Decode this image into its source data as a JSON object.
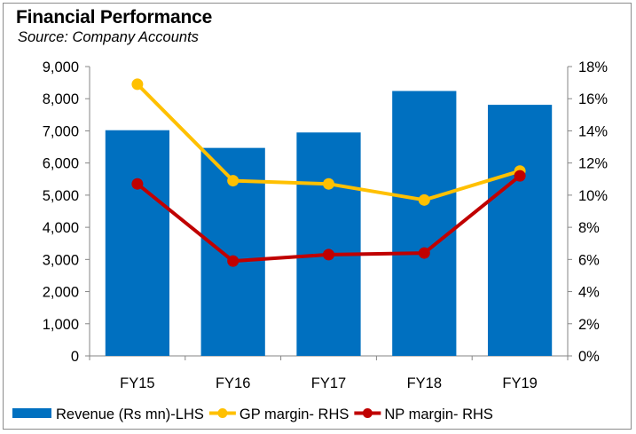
{
  "chart_data": {
    "type": "bar",
    "title": "Financial Performance",
    "subtitle": "Source: Company Accounts",
    "categories": [
      "FY15",
      "FY16",
      "FY17",
      "FY18",
      "FY19"
    ],
    "series": [
      {
        "name": "Revenue (Rs mn)-LHS",
        "type": "bar",
        "axis": "left",
        "color": "#0070C0",
        "values": [
          7020,
          6470,
          6950,
          8240,
          7810
        ]
      },
      {
        "name": "GP margin- RHS",
        "type": "line",
        "axis": "right",
        "color": "#FFC000",
        "values": [
          16.9,
          10.9,
          10.7,
          9.7,
          11.5
        ]
      },
      {
        "name": "NP margin- RHS",
        "type": "line",
        "axis": "right",
        "color": "#C00000",
        "values": [
          10.7,
          5.9,
          6.3,
          6.4,
          11.2
        ]
      }
    ],
    "left_axis": {
      "min": 0,
      "max": 9000,
      "step": 1000,
      "tick_labels": [
        "0",
        "1,000",
        "2,000",
        "3,000",
        "4,000",
        "5,000",
        "6,000",
        "7,000",
        "8,000",
        "9,000"
      ]
    },
    "right_axis": {
      "min": 0,
      "max": 18,
      "step": 2,
      "tick_labels": [
        "0%",
        "2%",
        "4%",
        "6%",
        "8%",
        "10%",
        "12%",
        "14%",
        "16%",
        "18%"
      ]
    },
    "grid": false,
    "legend_position": "bottom"
  }
}
